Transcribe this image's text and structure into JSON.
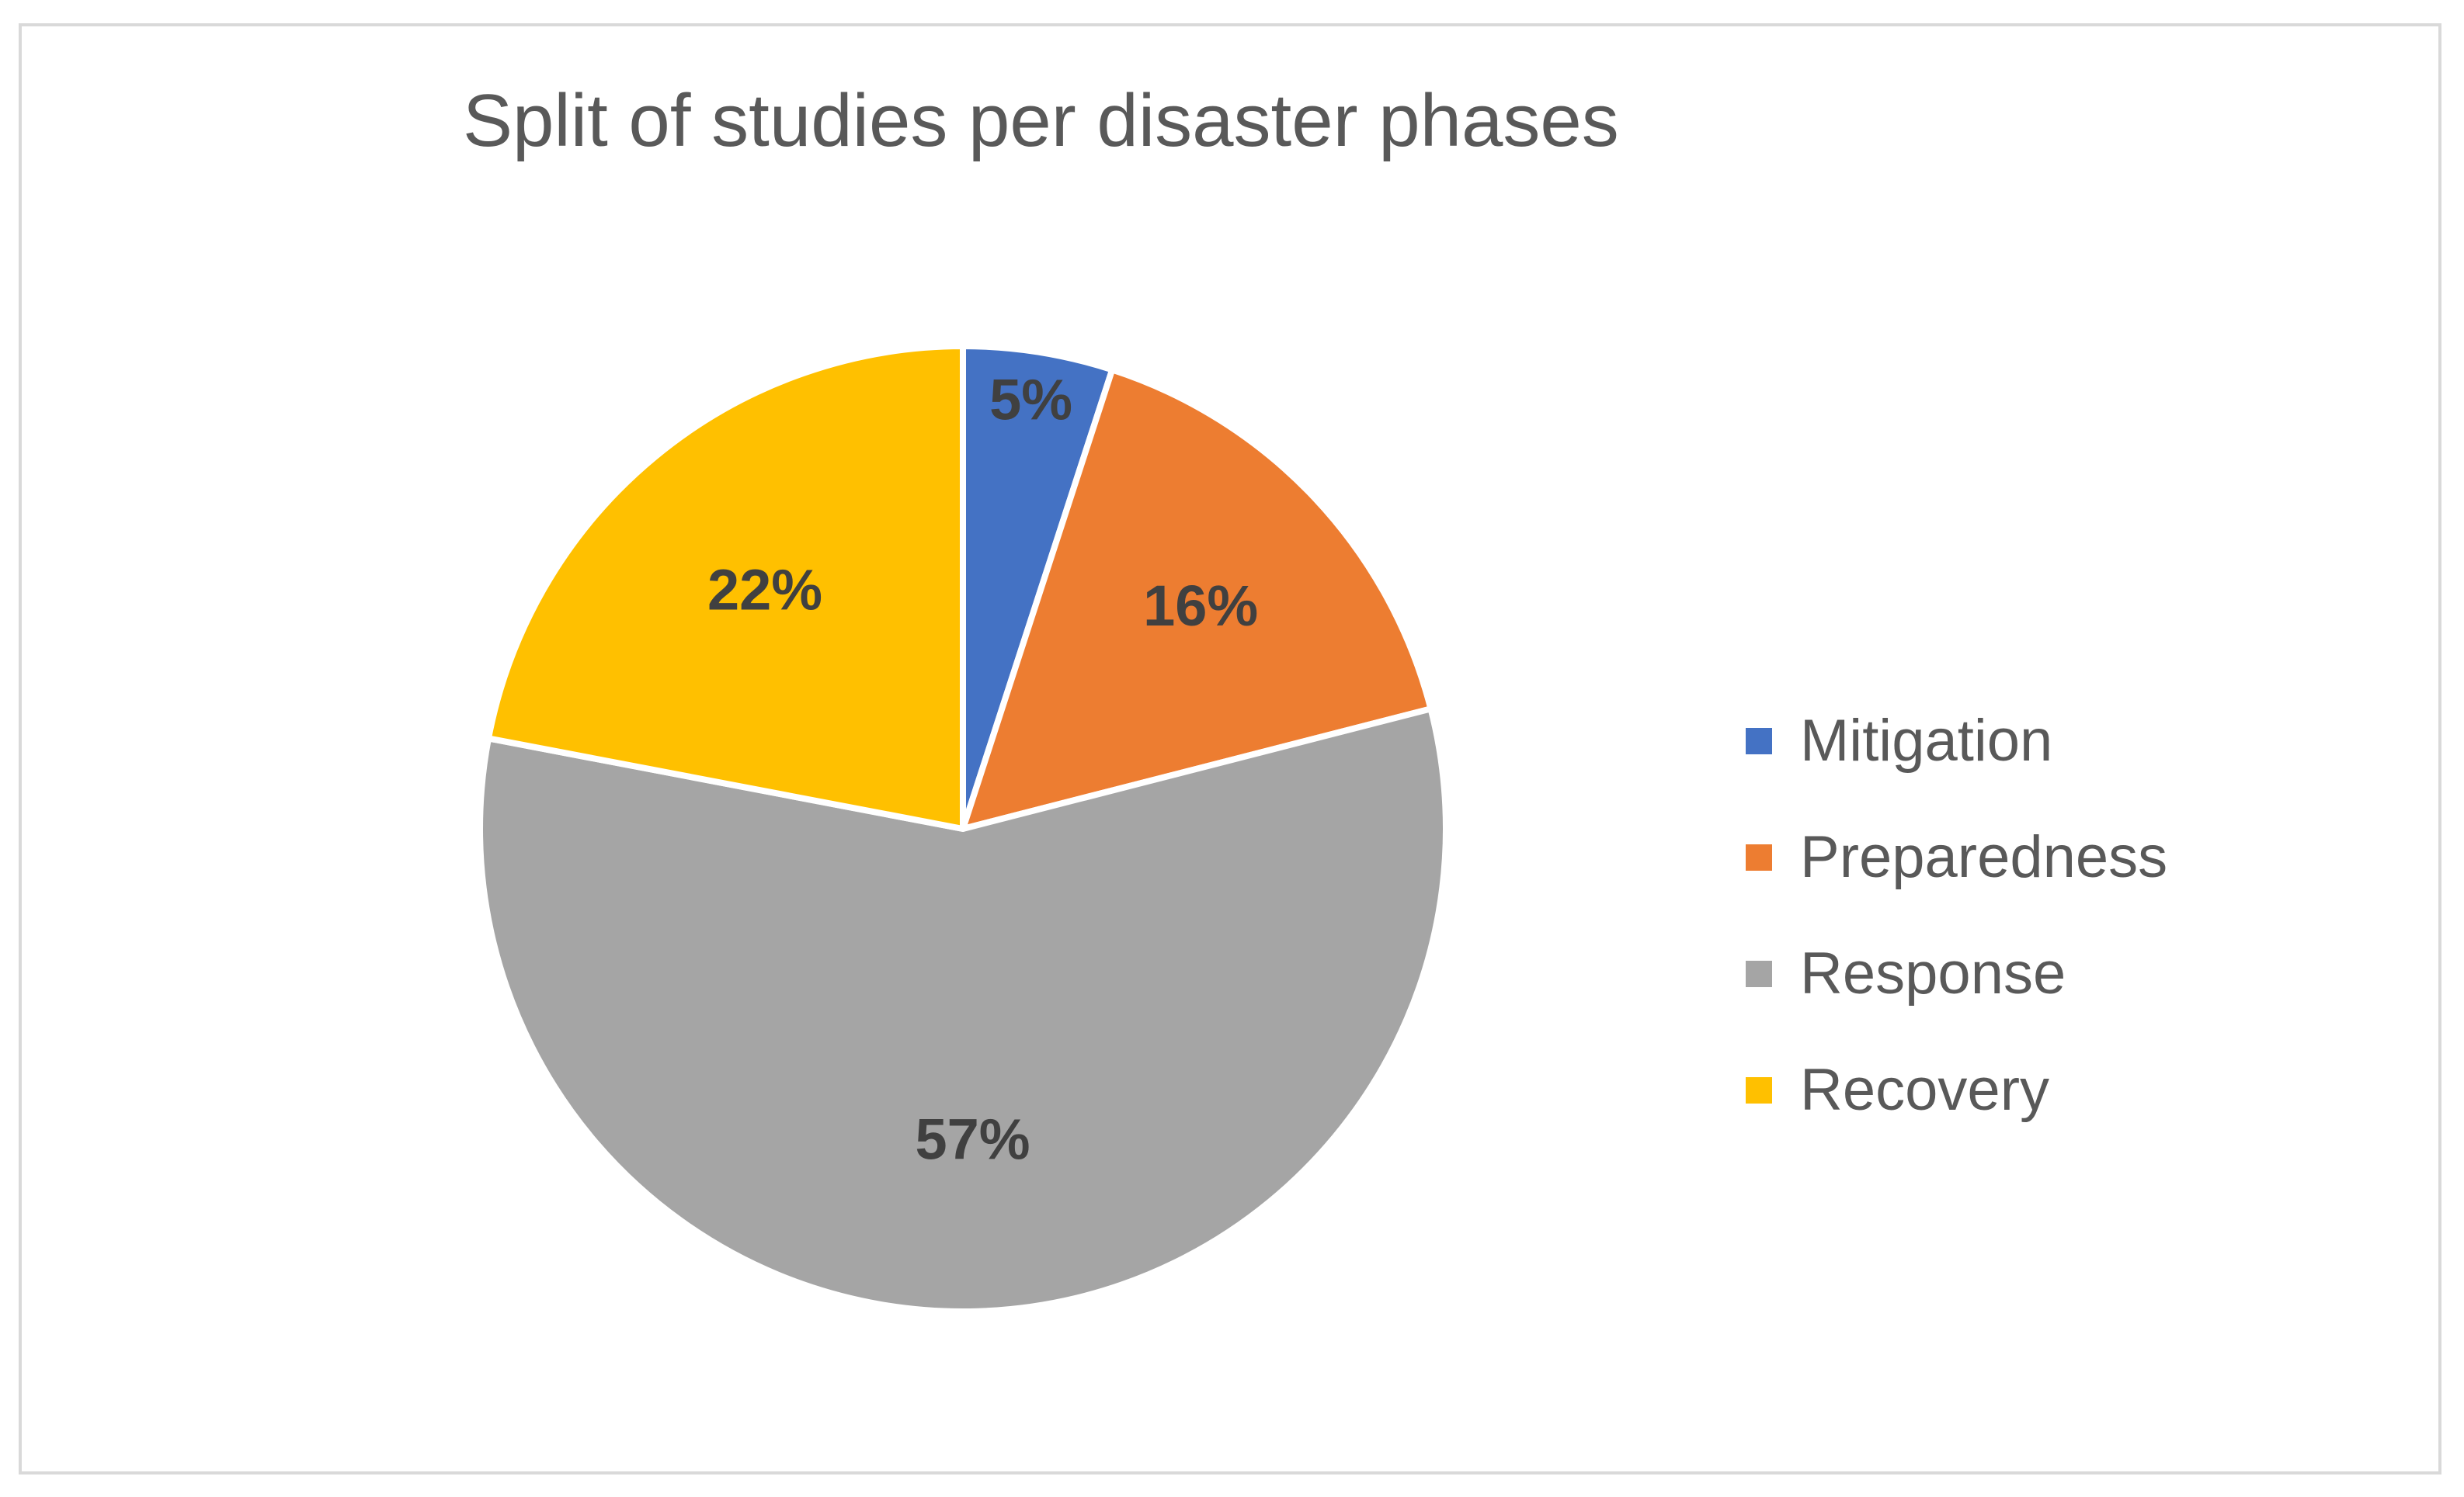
{
  "chart_data": {
    "type": "pie",
    "title": "Split of studies per disaster phases",
    "slices": [
      {
        "name": "Mitigation",
        "value": 5,
        "label": "5%",
        "color": "#4472C4"
      },
      {
        "name": "Preparedness",
        "value": 16,
        "label": "16%",
        "color": "#ED7D31"
      },
      {
        "name": "Response",
        "value": 57,
        "label": "57%",
        "color": "#A5A5A5"
      },
      {
        "name": "Recovery",
        "value": 22,
        "label": "22%",
        "color": "#FFC000"
      }
    ],
    "legend_position": "right",
    "start_angle_degrees": 0,
    "direction": "clockwise"
  }
}
